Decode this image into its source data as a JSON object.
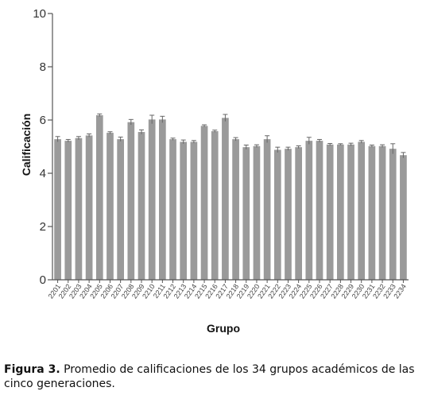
{
  "chart_data": {
    "type": "bar",
    "xlabel": "Grupo",
    "ylabel": "Calificación",
    "ylim": [
      0,
      10
    ],
    "yticks": [
      "0",
      "2",
      "4",
      "6",
      "8",
      "10"
    ],
    "categories": [
      "2201",
      "2202",
      "2203",
      "2204",
      "2205",
      "2206",
      "2207",
      "2208",
      "2209",
      "2210",
      "2211",
      "2212",
      "2213",
      "2214",
      "2215",
      "2216",
      "2217",
      "2218",
      "2219",
      "2220",
      "2221",
      "2222",
      "2223",
      "2224",
      "2225",
      "2226",
      "2227",
      "2228",
      "2229",
      "2230",
      "2231",
      "2232",
      "2233",
      "2234"
    ],
    "values": [
      5.28,
      5.22,
      5.32,
      5.42,
      6.18,
      5.52,
      5.28,
      5.92,
      5.55,
      6.02,
      6.02,
      5.28,
      5.18,
      5.18,
      5.78,
      5.58,
      6.08,
      5.28,
      4.98,
      5.02,
      5.28,
      4.88,
      4.92,
      4.98,
      5.22,
      5.22,
      5.08,
      5.08,
      5.08,
      5.18,
      5.02,
      5.02,
      4.92,
      4.68
    ],
    "errors": [
      0.1,
      0.05,
      0.06,
      0.06,
      0.05,
      0.04,
      0.08,
      0.1,
      0.08,
      0.16,
      0.12,
      0.04,
      0.07,
      0.05,
      0.04,
      0.04,
      0.13,
      0.06,
      0.08,
      0.05,
      0.13,
      0.1,
      0.06,
      0.05,
      0.13,
      0.05,
      0.04,
      0.03,
      0.05,
      0.05,
      0.04,
      0.05,
      0.19,
      0.1
    ],
    "bar_color": "#9a9a9a",
    "grid": false
  },
  "caption": {
    "label": "Figura 3.",
    "text": " Promedio de calificaciones de los 34 grupos académicos de las cinco generaciones."
  }
}
